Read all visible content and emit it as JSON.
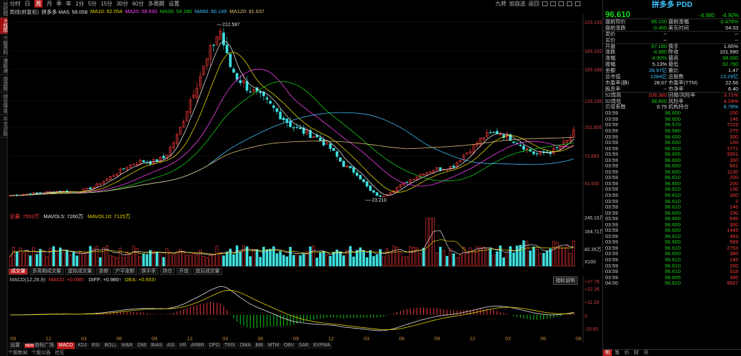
{
  "sidebar": {
    "tabs": [
      {
        "label": "分时图",
        "active": false
      },
      {
        "label": "K线图",
        "active": true
      },
      {
        "label": "个股资料",
        "active": false
      },
      {
        "label": "港股通",
        "active": false
      },
      {
        "label": "自选股",
        "active": false
      },
      {
        "label": "综合排名",
        "active": false
      },
      {
        "label": "牛叉诊股",
        "active": false
      }
    ]
  },
  "toolbar": {
    "periods": [
      "分时",
      "日",
      "周",
      "月",
      "季",
      "年",
      "1分",
      "5分",
      "15分",
      "30分",
      "60分",
      "多周期",
      "设置"
    ],
    "active_period": "周",
    "right_items": [
      "九转",
      "加自选",
      "返回"
    ]
  },
  "ma_legend": [
    {
      "text": "拼多多 MA5: 58.058",
      "color": "#e6e6e6"
    },
    {
      "text": "MA10: 62.054",
      "color": "#e8d900"
    },
    {
      "text": "MA20: 58.630",
      "color": "#ff40ff"
    },
    {
      "text": "MA30: 54.180",
      "color": "#18d318"
    },
    {
      "text": "MA60: 60.149",
      "color": "#3fc3ff"
    },
    {
      "text": "MA120: 91.637",
      "color": "#e0c27a"
    }
  ],
  "title_prefix": "周线(前复权)",
  "volume_legend": [
    {
      "text": "总量: 7553万",
      "color": "#ff3b3b"
    },
    {
      "text": "MAVOL5: 7260万",
      "color": "#e6e6e6"
    },
    {
      "text": "MAVOL10: 7125万",
      "color": "#e8d900"
    }
  ],
  "volume_axis": [
    "245.10万",
    "164.71万",
    "82.35万",
    "X100"
  ],
  "volume_tabs": [
    {
      "label": "成交量",
      "active": true
    },
    {
      "label": "多周期成交量",
      "active": false
    },
    {
      "label": "虚拟成交量",
      "active": false
    },
    {
      "label": "金额",
      "active": false
    },
    {
      "label": "户平金额",
      "active": false
    },
    {
      "label": "换手率",
      "active": false
    },
    {
      "label": "持仓",
      "active": false
    },
    {
      "label": "开盘",
      "active": false
    },
    {
      "label": "盘后成交量",
      "active": false
    }
  ],
  "macd_legend": [
    {
      "text": "MACD(12,26,9)",
      "color": "#c8c8c8"
    },
    {
      "text": "MACD: +0.095↑",
      "color": "#ff3b3b"
    },
    {
      "text": "DIFF: +0.980↑",
      "color": "#e6e6e6"
    },
    {
      "text": "DEA: +0.933↑",
      "color": "#e8d900"
    }
  ],
  "macd_button": "指标说明",
  "macd_axis": [
    "+27.79",
    "+22.26",
    "+11.18",
    "0",
    "-10.65"
  ],
  "date_ticks": [
    "09",
    "12",
    "03",
    "06",
    "09",
    "12",
    "03",
    "06",
    "09",
    "12",
    "03",
    "06",
    "09",
    "12",
    "03",
    "06",
    "09"
  ],
  "indicator_tabs": [
    {
      "label": "设置",
      "active": false,
      "new": false
    },
    {
      "label": "指标广场",
      "active": false,
      "new": true
    },
    {
      "label": "MACD",
      "active": true,
      "new": false
    },
    {
      "label": "KDJ",
      "active": false,
      "new": false
    },
    {
      "label": "RSI",
      "active": false,
      "new": false
    },
    {
      "label": "BOLL",
      "active": false,
      "new": false
    },
    {
      "label": "W&R",
      "active": false,
      "new": false
    },
    {
      "label": "DMI",
      "active": false,
      "new": false
    },
    {
      "label": "BIAS",
      "active": false,
      "new": false
    },
    {
      "label": "ASI",
      "active": false,
      "new": false
    },
    {
      "label": "VR",
      "active": false,
      "new": false
    },
    {
      "label": "ARBR",
      "active": false,
      "new": false
    },
    {
      "label": "DPO",
      "active": false,
      "new": false
    },
    {
      "label": "TRIX",
      "active": false,
      "new": false
    },
    {
      "label": "DMA",
      "active": false,
      "new": false
    },
    {
      "label": "BBI",
      "active": false,
      "new": false
    },
    {
      "label": "MTM",
      "active": false,
      "new": false
    },
    {
      "label": "OBV",
      "active": false,
      "new": false
    },
    {
      "label": "SAR",
      "active": false,
      "new": false
    },
    {
      "label": "EXPMA",
      "active": false,
      "new": false
    }
  ],
  "footer_tabs": [
    "个股新闻",
    "个股公告",
    "社区"
  ],
  "price_axis": [
    "223.126",
    "183.162",
    "163.189",
    "133.236",
    "102.856",
    "72.883",
    "42.930"
  ],
  "annotations": {
    "high": "212.597",
    "low": "23.210"
  },
  "quote": {
    "name": "拼多多 PDD",
    "price": "96.610",
    "change": "-4.980",
    "change_pct": "-4.90%",
    "rows": [
      [
        {
          "t": "盘前现价"
        },
        {
          "t": "96.150",
          "c": "green"
        },
        {
          "t": "盘前涨幅"
        },
        {
          "t": "-0.476%",
          "c": "green"
        }
      ],
      [
        {
          "t": "盘前涨跌"
        },
        {
          "t": "-0.460",
          "c": "green"
        },
        {
          "t": "美东时间"
        },
        {
          "t": "04:33",
          "c": "white"
        }
      ],
      [
        {
          "t": "卖价"
        },
        {
          "t": "--",
          "c": "white"
        },
        {
          "t": ""
        },
        {
          "t": "--",
          "c": "white"
        }
      ],
      [
        {
          "t": "买价"
        },
        {
          "t": "--",
          "c": "white"
        },
        {
          "t": ""
        },
        {
          "t": "--",
          "c": "white"
        }
      ],
      [
        {
          "t": "开盘"
        },
        {
          "t": "97.180",
          "c": "green"
        },
        {
          "t": "换手"
        },
        {
          "t": "1.65%",
          "c": "white"
        }
      ],
      [
        {
          "t": "涨跌"
        },
        {
          "t": "-4.980",
          "c": "green"
        },
        {
          "t": "昨收"
        },
        {
          "t": "101.590",
          "c": "white"
        }
      ],
      [
        {
          "t": "涨幅"
        },
        {
          "t": "-4.90%",
          "c": "green"
        },
        {
          "t": "最高"
        },
        {
          "t": "98.000",
          "c": "green"
        }
      ],
      [
        {
          "t": "振幅"
        },
        {
          "t": "5.13%",
          "c": "white"
        },
        {
          "t": "最低"
        },
        {
          "t": "92.790",
          "c": "green"
        }
      ],
      [
        {
          "t": "金额"
        },
        {
          "t": "28.97亿",
          "c": "cyan"
        },
        {
          "t": "量比"
        },
        {
          "t": "1.47",
          "c": "white"
        }
      ],
      [
        {
          "t": "总市值"
        },
        {
          "t": "1284亿",
          "c": "cyan"
        },
        {
          "t": "总股数"
        },
        {
          "t": "13.29亿",
          "c": "cyan"
        }
      ],
      [
        {
          "t": "市盈率(静)"
        },
        {
          "t": "28.07",
          "c": "white"
        },
        {
          "t": "市盈率(TTM)"
        },
        {
          "t": "22.56",
          "c": "white"
        }
      ],
      [
        {
          "t": "股息率"
        },
        {
          "t": "--",
          "c": "white"
        },
        {
          "t": "市净率"
        },
        {
          "t": "6.40",
          "c": "white"
        }
      ],
      [
        {
          "t": "52周高"
        },
        {
          "t": "106.380",
          "c": "red"
        },
        {
          "t": "回报/风险率"
        },
        {
          "t": "3.71%",
          "c": "red"
        }
      ],
      [
        {
          "t": "52周低"
        },
        {
          "t": "38.800",
          "c": "green"
        },
        {
          "t": "风险率"
        },
        {
          "t": "4.24%",
          "c": "red"
        }
      ],
      [
        {
          "t": "贝塔系数"
        },
        {
          "t": "0.75",
          "c": "white"
        },
        {
          "t": "机构持仓"
        },
        {
          "t": "6.78%",
          "c": "cyan"
        }
      ]
    ]
  },
  "ticks": [
    {
      "time": "03:59",
      "price": "96.600",
      "vol": "200",
      "c": "red"
    },
    {
      "time": "03:59",
      "price": "96.600",
      "vol": "146",
      "c": "red"
    },
    {
      "time": "03:59",
      "price": "96.570",
      "vol": "7215",
      "c": "red"
    },
    {
      "time": "03:59",
      "price": "96.580",
      "vol": "275",
      "c": "red"
    },
    {
      "time": "03:59",
      "price": "96.600",
      "vol": "300",
      "c": "red"
    },
    {
      "time": "03:59",
      "price": "96.600",
      "vol": "100",
      "c": "red"
    },
    {
      "time": "03:59",
      "price": "96.610",
      "vol": "1771",
      "c": "red"
    },
    {
      "time": "03:59",
      "price": "96.605",
      "vol": "3301",
      "c": "red"
    },
    {
      "time": "03:59",
      "price": "96.600",
      "vol": "300",
      "c": "red"
    },
    {
      "time": "03:59",
      "price": "96.600",
      "vol": "941",
      "c": "red"
    },
    {
      "time": "03:59",
      "price": "96.600",
      "vol": "1100",
      "c": "red"
    },
    {
      "time": "03:59",
      "price": "96.610",
      "vol": "200",
      "c": "red"
    },
    {
      "time": "03:59",
      "price": "96.600",
      "vol": "200",
      "c": "red"
    },
    {
      "time": "03:59",
      "price": "96.610",
      "vol": "100",
      "c": "red"
    },
    {
      "time": "03:59",
      "price": "96.610",
      "vol": "300",
      "c": "red"
    },
    {
      "time": "03:59",
      "price": "96.610",
      "vol": "2",
      "c": "red"
    },
    {
      "time": "03:59",
      "price": "96.610",
      "vol": "146",
      "c": "red"
    },
    {
      "time": "03:59",
      "price": "96.600",
      "vol": "200",
      "c": "red"
    },
    {
      "time": "03:59",
      "price": "96.600",
      "vol": "645",
      "c": "red"
    },
    {
      "time": "03:59",
      "price": "96.600",
      "vol": "300",
      "c": "red"
    },
    {
      "time": "03:59",
      "price": "96.600",
      "vol": "1445",
      "c": "red"
    },
    {
      "time": "03:59",
      "price": "96.610",
      "vol": "483",
      "c": "red"
    },
    {
      "time": "03:59",
      "price": "96.600",
      "vol": "569",
      "c": "red"
    },
    {
      "time": "03:59",
      "price": "96.610",
      "vol": "2753",
      "c": "red"
    },
    {
      "time": "03:59",
      "price": "96.600",
      "vol": "380",
      "c": "red"
    },
    {
      "time": "03:59",
      "price": "96.610",
      "vol": "145",
      "c": "red"
    },
    {
      "time": "03:59",
      "price": "96.610",
      "vol": "200",
      "c": "red"
    },
    {
      "time": "03:59",
      "price": "96.610",
      "vol": "318",
      "c": "red"
    },
    {
      "time": "03:59",
      "price": "96.605",
      "vol": "300",
      "c": "red"
    },
    {
      "time": "04:00",
      "price": "96.610",
      "vol": "9567",
      "c": "red"
    }
  ],
  "right_tabs": [
    {
      "label": "明",
      "active": true
    },
    {
      "label": "笔",
      "active": false
    },
    {
      "label": "价",
      "active": false
    },
    {
      "label": "财",
      "active": false
    },
    {
      "label": "讯",
      "active": false
    }
  ],
  "colors": {
    "up": "#ff3b3b",
    "down": "#3fe0e0",
    "bg": "#000000"
  }
}
